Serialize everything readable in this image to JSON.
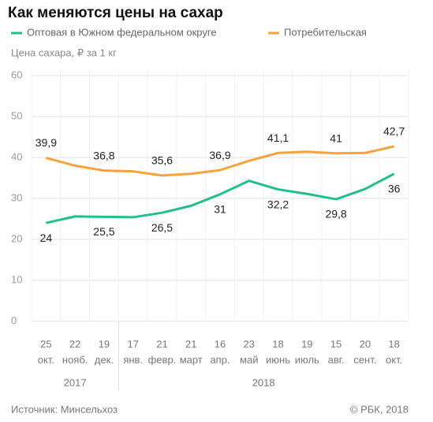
{
  "chart_data": {
    "type": "line",
    "title": "Как меняются цены на сахар",
    "y_label": "Цена сахара, ₽ за 1 кг",
    "categories": [
      "25",
      "22",
      "19",
      "17",
      "21",
      "21",
      "16",
      "23",
      "18",
      "19",
      "15",
      "20",
      "18"
    ],
    "category_sublabels": [
      "окт.",
      "нояб.",
      "дек.",
      "янв.",
      "февр.",
      "март",
      "апр.",
      "май",
      "июнь",
      "июль",
      "авг.",
      "сент.",
      "окт."
    ],
    "year_groups": [
      {
        "label": "2017",
        "start": 0,
        "end": 2
      },
      {
        "label": "2018",
        "start": 3,
        "end": 12
      }
    ],
    "series": [
      {
        "name": "Оптовая в Южном федеральном округе",
        "color": "#1fbf8f",
        "values": [
          24,
          25.6,
          25.5,
          25.4,
          26.5,
          28.2,
          31,
          34.3,
          32.2,
          31.1,
          29.8,
          32.3,
          36
        ],
        "value_labels": [
          "24",
          null,
          "25,5",
          null,
          "26,5",
          null,
          "31",
          null,
          "32,2",
          null,
          "29,8",
          null,
          "36"
        ]
      },
      {
        "name": "Потребительская",
        "color": "#f5a33a",
        "values": [
          39.9,
          38.0,
          36.8,
          36.6,
          35.6,
          36.0,
          36.9,
          39.2,
          41.1,
          41.4,
          41,
          41.1,
          42.7
        ],
        "value_labels": [
          "39,9",
          null,
          "36,8",
          null,
          "35,6",
          null,
          "36,9",
          null,
          "41,1",
          null,
          "41",
          null,
          "42,7"
        ]
      }
    ],
    "ylim": [
      0,
      60
    ],
    "yticks": [
      0,
      10,
      20,
      30,
      40,
      50,
      60
    ],
    "grid": true,
    "source": "Источник: Минсельхоз",
    "copyright": "© РБК, 2018"
  }
}
